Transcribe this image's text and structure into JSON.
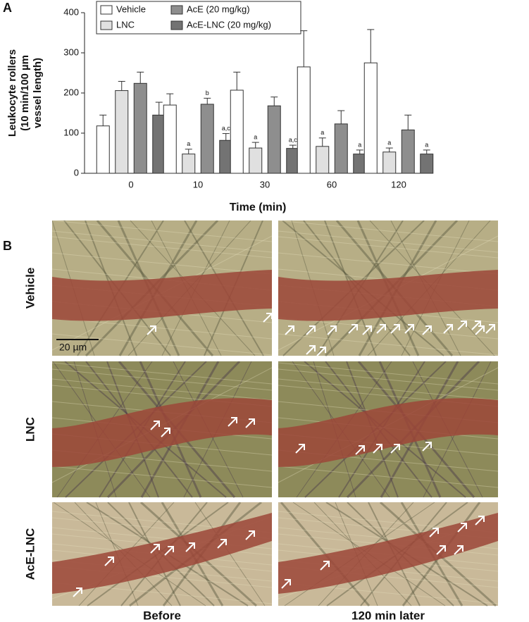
{
  "chart_data": {
    "type": "bar",
    "panel_label": "A",
    "ylabel": [
      "Leukocyte rollers",
      "(10 min/100 µm",
      "vessel length)"
    ],
    "xlabel": "Time (min)",
    "categories": [
      "0",
      "10",
      "30",
      "60",
      "120"
    ],
    "ylim": [
      0,
      400
    ],
    "yticks": [
      0,
      100,
      200,
      300,
      400
    ],
    "series": [
      {
        "name": "Vehicle",
        "color": "#ffffff",
        "values": [
          118,
          170,
          207,
          265,
          275
        ],
        "errors": [
          27,
          28,
          45,
          90,
          83
        ],
        "annotations": [
          null,
          null,
          null,
          null,
          null
        ]
      },
      {
        "name": "LNC",
        "color": "#e0e0e0",
        "values": [
          206,
          48,
          63,
          67,
          53
        ],
        "errors": [
          23,
          12,
          14,
          21,
          10
        ],
        "annotations": [
          null,
          "a",
          "a",
          "a",
          "a"
        ]
      },
      {
        "name": "AcE (20 mg/kg)",
        "color": "#8e8e8e",
        "values": [
          224,
          172,
          168,
          123,
          108
        ],
        "errors": [
          28,
          15,
          22,
          33,
          37
        ],
        "annotations": [
          null,
          "b",
          null,
          null,
          null
        ]
      },
      {
        "name": "AcE-LNC (20 mg/kg)",
        "color": "#737373",
        "values": [
          145,
          82,
          62,
          48,
          48
        ],
        "errors": [
          32,
          17,
          8,
          10,
          10
        ],
        "annotations": [
          null,
          "a,c",
          "a,c",
          "a",
          "a"
        ]
      }
    ]
  },
  "panel_b": {
    "label": "B",
    "rows": [
      "Vehicle",
      "LNC",
      "AcE-LNC"
    ],
    "columns": [
      "Before",
      "120 min later"
    ],
    "scale_bar": "20 µm"
  }
}
